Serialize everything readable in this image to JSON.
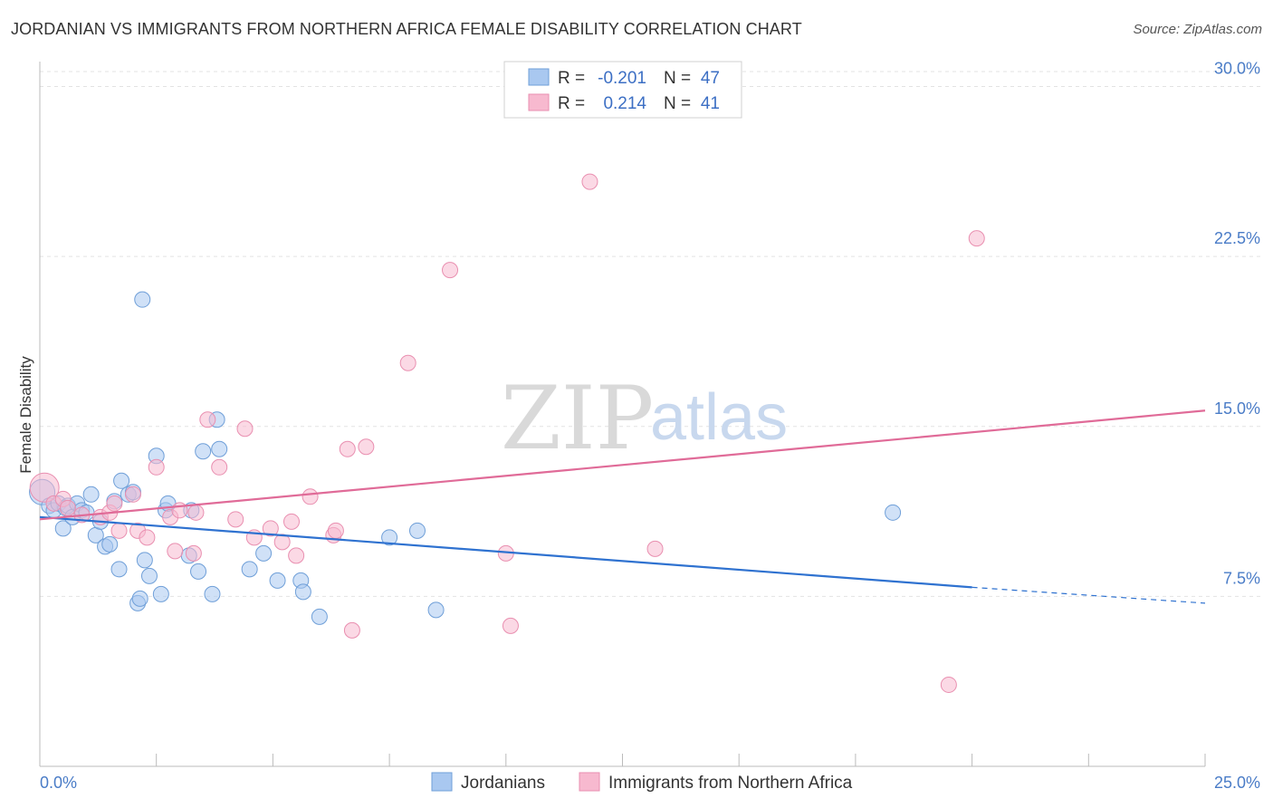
{
  "title": "JORDANIAN VS IMMIGRANTS FROM NORTHERN AFRICA FEMALE DISABILITY CORRELATION CHART",
  "source": "Source: ZipAtlas.com",
  "watermark": {
    "zip": "ZIP",
    "atlas": "atlas"
  },
  "legend": {
    "rows": [
      {
        "r_label": "R =",
        "r_value": "-0.201",
        "n_label": "N =",
        "n_value": "47",
        "color": "#a9c8f0"
      },
      {
        "r_label": "R =",
        "r_value": "0.214",
        "n_label": "N =",
        "n_value": "41",
        "color": "#f7b9cf"
      }
    ]
  },
  "chart_data": {
    "type": "scatter",
    "title": "JORDANIAN VS IMMIGRANTS FROM NORTHERN AFRICA FEMALE DISABILITY CORRELATION CHART",
    "xlabel": "",
    "ylabel": "Female Disability",
    "xlim": [
      0,
      25
    ],
    "ylim": [
      0,
      31.5
    ],
    "x_tick_labels": [
      "0.0%",
      "25.0%"
    ],
    "y_ticks": [
      7.5,
      15.0,
      22.5,
      30.0
    ],
    "y_tick_labels": [
      "7.5%",
      "15.0%",
      "22.5%",
      "30.0%"
    ],
    "grid": true,
    "legend_position": "top-center",
    "series": [
      {
        "name": "Jordanians",
        "color": "#a9c8f0",
        "stroke": "#6f9fd8",
        "trend_color": "#2f72d0",
        "trend": {
          "x0": 0,
          "y0": 11.0,
          "x1": 20,
          "y1": 7.9,
          "dash_to_x": 25,
          "dash_to_y": 7.2
        },
        "points": [
          [
            0.05,
            12.1
          ],
          [
            0.2,
            11.5
          ],
          [
            0.3,
            11.3
          ],
          [
            0.4,
            11.6
          ],
          [
            0.5,
            10.5
          ],
          [
            0.55,
            11.4
          ],
          [
            0.6,
            11.5
          ],
          [
            0.7,
            11.0
          ],
          [
            0.8,
            11.6
          ],
          [
            0.9,
            11.3
          ],
          [
            1.0,
            11.2
          ],
          [
            1.1,
            12.0
          ],
          [
            1.2,
            10.2
          ],
          [
            1.3,
            10.8
          ],
          [
            1.4,
            9.7
          ],
          [
            1.5,
            9.8
          ],
          [
            1.6,
            11.7
          ],
          [
            1.7,
            8.7
          ],
          [
            1.75,
            12.6
          ],
          [
            1.9,
            12.0
          ],
          [
            2.0,
            12.1
          ],
          [
            2.2,
            20.6
          ],
          [
            2.25,
            9.1
          ],
          [
            2.35,
            8.4
          ],
          [
            2.5,
            13.7
          ],
          [
            2.1,
            7.2
          ],
          [
            2.15,
            7.4
          ],
          [
            2.6,
            7.6
          ],
          [
            2.7,
            11.3
          ],
          [
            2.75,
            11.6
          ],
          [
            3.2,
            9.3
          ],
          [
            3.25,
            11.3
          ],
          [
            3.4,
            8.6
          ],
          [
            3.5,
            13.9
          ],
          [
            3.7,
            7.6
          ],
          [
            3.8,
            15.3
          ],
          [
            3.85,
            14.0
          ],
          [
            4.5,
            8.7
          ],
          [
            4.8,
            9.4
          ],
          [
            5.1,
            8.2
          ],
          [
            5.6,
            8.2
          ],
          [
            5.65,
            7.7
          ],
          [
            6.0,
            6.6
          ],
          [
            7.5,
            10.1
          ],
          [
            8.1,
            10.4
          ],
          [
            8.5,
            6.9
          ],
          [
            18.3,
            11.2
          ]
        ]
      },
      {
        "name": "Immigrants from Northern Africa",
        "color": "#f7b9cf",
        "stroke": "#e98fb0",
        "trend_color": "#e06b98",
        "trend": {
          "x0": 0,
          "y0": 10.9,
          "x1": 25,
          "y1": 15.7
        },
        "points": [
          [
            0.1,
            12.3
          ],
          [
            0.3,
            11.6
          ],
          [
            0.5,
            11.8
          ],
          [
            0.6,
            11.4
          ],
          [
            0.9,
            11.1
          ],
          [
            1.3,
            11.0
          ],
          [
            1.5,
            11.2
          ],
          [
            1.6,
            11.6
          ],
          [
            1.7,
            10.4
          ],
          [
            2.0,
            12.0
          ],
          [
            2.1,
            10.4
          ],
          [
            2.3,
            10.1
          ],
          [
            2.5,
            13.2
          ],
          [
            2.8,
            11.0
          ],
          [
            2.9,
            9.5
          ],
          [
            3.0,
            11.3
          ],
          [
            3.3,
            9.4
          ],
          [
            3.35,
            11.2
          ],
          [
            3.6,
            15.3
          ],
          [
            3.85,
            13.2
          ],
          [
            4.2,
            10.9
          ],
          [
            4.4,
            14.9
          ],
          [
            4.6,
            10.1
          ],
          [
            4.95,
            10.5
          ],
          [
            5.2,
            9.9
          ],
          [
            5.4,
            10.8
          ],
          [
            5.5,
            9.3
          ],
          [
            5.8,
            11.9
          ],
          [
            6.3,
            10.2
          ],
          [
            6.35,
            10.4
          ],
          [
            6.6,
            14.0
          ],
          [
            6.7,
            6.0
          ],
          [
            7.0,
            14.1
          ],
          [
            7.9,
            17.8
          ],
          [
            8.8,
            21.9
          ],
          [
            10.0,
            9.4
          ],
          [
            10.1,
            6.2
          ],
          [
            11.8,
            25.8
          ],
          [
            13.2,
            9.6
          ],
          [
            19.5,
            3.6
          ],
          [
            20.1,
            23.3
          ]
        ]
      }
    ]
  }
}
